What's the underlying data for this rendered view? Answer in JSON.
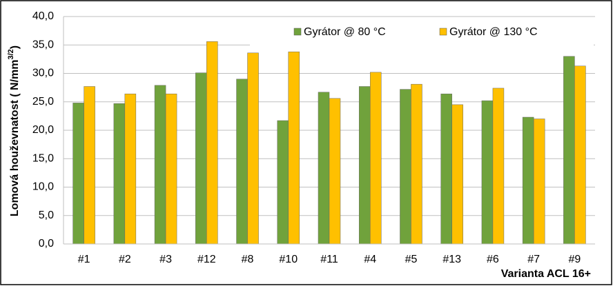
{
  "chart_data": {
    "type": "bar",
    "y_label": {
      "text": "Lomová houževnatost ( N/mm",
      "sup": "3/2",
      "after": ")"
    },
    "x_label": "Varianta ACL 16+",
    "categories": [
      "#1",
      "#2",
      "#3",
      "#12",
      "#8",
      "#10",
      "#11",
      "#4",
      "#5",
      "#13",
      "#6",
      "#7",
      "#9"
    ],
    "series": [
      {
        "name": "Gyrátor @ 80 °C",
        "color": "#70a23c",
        "values": [
          24.8,
          24.7,
          27.9,
          30.1,
          29.0,
          21.7,
          26.7,
          27.7,
          27.2,
          26.4,
          25.2,
          22.3,
          33.0
        ]
      },
      {
        "name": "Gyrátor @ 130 °C",
        "color": "#ffc000",
        "values": [
          27.7,
          26.4,
          26.4,
          35.6,
          33.6,
          33.8,
          25.6,
          30.2,
          28.1,
          24.5,
          27.4,
          22.0,
          31.3
        ]
      }
    ],
    "ylim": [
      0,
      40
    ],
    "yticks": [
      {
        "value": 0,
        "label": "0,0"
      },
      {
        "value": 5,
        "label": "5,0"
      },
      {
        "value": 10,
        "label": "10,0"
      },
      {
        "value": 15,
        "label": "15,0"
      },
      {
        "value": 20,
        "label": "20,0"
      },
      {
        "value": 25,
        "label": "25,0"
      },
      {
        "value": 30,
        "label": "30,0"
      },
      {
        "value": 35,
        "label": "35,0"
      },
      {
        "value": 40,
        "label": "40,0"
      }
    ],
    "grid": true,
    "legend": "top"
  }
}
